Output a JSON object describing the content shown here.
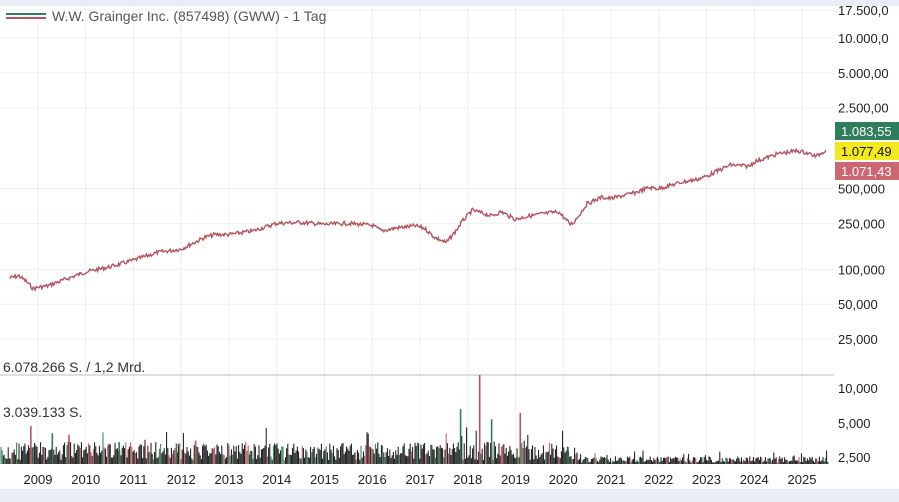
{
  "header": {
    "legend_label": "W.W. Grainger Inc. (857498) (GWW) - 1 Tag"
  },
  "colors": {
    "background": "#ffffff",
    "frame": "#e9eef6",
    "grid": "#eceff4",
    "price_line": "#b3545e",
    "volume_up": "#2f7d55",
    "volume_down": "#b3545e",
    "volume_base": "#111111",
    "badge_high": "#2e7d5b",
    "badge_current": "#f2ea1c",
    "badge_low": "#cc6670",
    "legend_swatch_top": "#2e7d5b",
    "legend_swatch_bottom": "#b3545e"
  },
  "price_badges": {
    "high": "1.083,55",
    "current": "1.077,49",
    "low": "1.071,43"
  },
  "volume_labels": {
    "max": "6.078.266 S. / 1,2 Mrd.",
    "half": "3.039.133 S."
  },
  "chart_data": [
    {
      "type": "line",
      "title": "W.W. Grainger Inc. (857498) (GWW) - 1 Tag",
      "scale": "log",
      "grid": true,
      "x_range": [
        2008.4,
        2025.6
      ],
      "y_axis_labels": [
        "17.500,0",
        "10.000,0",
        "5.000,00",
        "2.500,00",
        "500,000",
        "250,000",
        "100,000",
        "50,000",
        "25,000"
      ],
      "y_axis_values": [
        17500,
        10000,
        5000,
        2500,
        500,
        250,
        100,
        50,
        25
      ],
      "x_axis_labels": [
        "2009",
        "2010",
        "2011",
        "2012",
        "2013",
        "2014",
        "2015",
        "2016",
        "2017",
        "2018",
        "2019",
        "2020",
        "2021",
        "2022",
        "2023",
        "2024",
        "2025"
      ],
      "x_axis_values": [
        2009,
        2010,
        2011,
        2012,
        2013,
        2014,
        2015,
        2016,
        2017,
        2018,
        2019,
        2020,
        2021,
        2022,
        2023,
        2024,
        2025
      ],
      "x": [
        2008.4,
        2008.6,
        2008.75,
        2008.9,
        2009.0,
        2009.2,
        2009.5,
        2010.0,
        2010.5,
        2011.0,
        2011.5,
        2012.0,
        2012.2,
        2012.5,
        2012.7,
        2013.0,
        2013.5,
        2014.0,
        2014.5,
        2015.0,
        2015.5,
        2016.0,
        2016.2,
        2016.5,
        2016.9,
        2017.1,
        2017.3,
        2017.55,
        2017.75,
        2017.9,
        2018.1,
        2018.5,
        2018.7,
        2019.0,
        2019.2,
        2019.5,
        2019.9,
        2020.15,
        2020.22,
        2020.5,
        2020.8,
        2021.0,
        2021.5,
        2021.8,
        2022.0,
        2022.5,
        2022.8,
        2023.0,
        2023.5,
        2023.9,
        2024.0,
        2024.5,
        2024.9,
        2025.1,
        2025.3,
        2025.5
      ],
      "y": [
        84,
        88,
        79,
        68,
        70,
        72,
        80,
        95,
        105,
        120,
        140,
        150,
        165,
        190,
        200,
        200,
        215,
        250,
        255,
        245,
        250,
        240,
        215,
        228,
        238,
        226,
        190,
        170,
        215,
        265,
        325,
        290,
        315,
        270,
        285,
        300,
        315,
        245,
        255,
        370,
        420,
        410,
        460,
        510,
        500,
        570,
        600,
        640,
        800,
        780,
        850,
        1000,
        1060,
        1020,
        950,
        1077.49
      ],
      "series": [
        {
          "name": "W.W. Grainger Inc. (857498) (GWW) - 1 Tag",
          "values": "y"
        }
      ]
    },
    {
      "type": "bar",
      "title": "",
      "y_axis_labels": [
        "10,000",
        "5,000",
        "2,500"
      ],
      "y_axis_values": [
        10000,
        5000,
        2500
      ],
      "annotations": [
        "6.078.266 S. / 1,2 Mrd.",
        "3.039.133 S."
      ],
      "peak_x": [
        2008.85,
        2009.3,
        2009.65,
        2010.7,
        2011.3,
        2011.9,
        2012.3,
        2013.45,
        2016.0,
        2017.85,
        2018.25,
        2018.5,
        2019.1,
        2020.1
      ],
      "peak_values": [
        2600000,
        2100000,
        2000000,
        1500000,
        1250000,
        1400000,
        1600000,
        900000,
        1050000,
        3750000,
        6078266,
        3050000,
        3500000,
        1150000
      ],
      "volume_scale_max": 6078266
    }
  ]
}
